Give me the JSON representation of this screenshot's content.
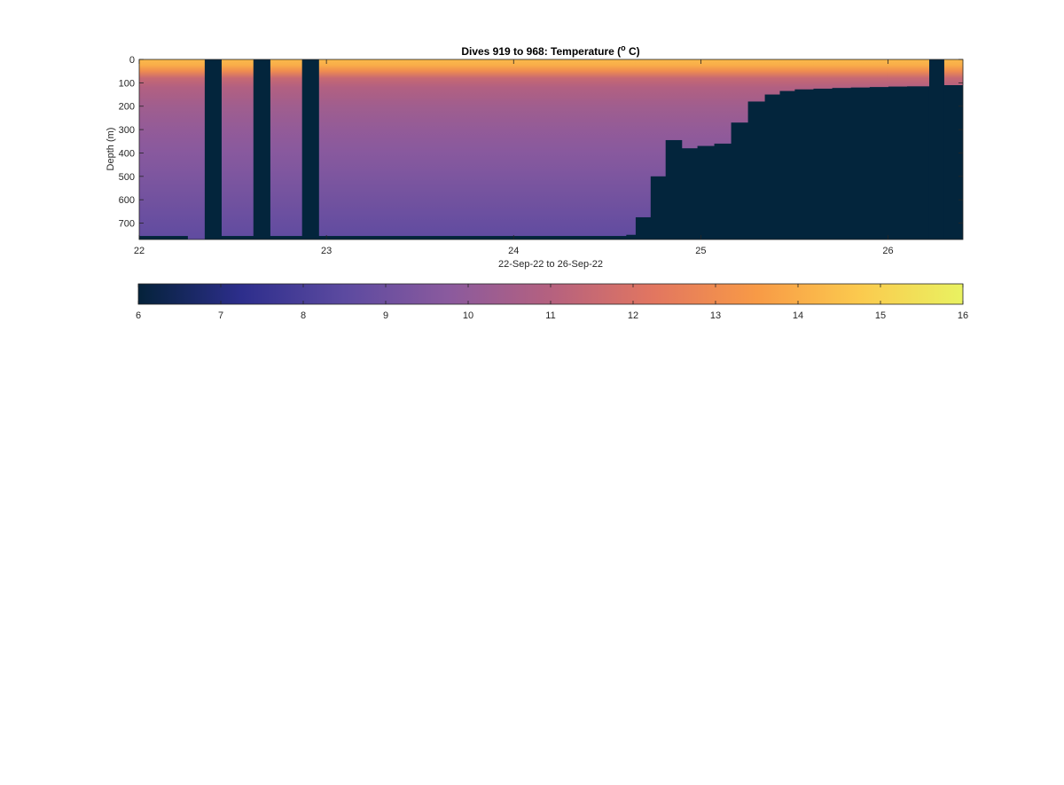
{
  "chart_data": {
    "type": "heatmap",
    "title": {
      "prefix": "Dives 919 to 968: Temperature (",
      "superscript": "o",
      "suffix": " C)"
    },
    "xlabel": "22-Sep-22 to 26-Sep-22",
    "ylabel": "Depth (m)",
    "xlim": [
      22.0,
      26.4
    ],
    "ylim": [
      0,
      770
    ],
    "y_reversed": true,
    "x_ticks": [
      22,
      23,
      24,
      25,
      26
    ],
    "x_tick_labels": [
      "22",
      "23",
      "24",
      "25",
      "26"
    ],
    "y_ticks": [
      0,
      100,
      200,
      300,
      400,
      500,
      600,
      700
    ],
    "y_tick_labels": [
      "0",
      "100",
      "200",
      "300",
      "400",
      "500",
      "600",
      "700"
    ],
    "grid": false,
    "no_data_color": "#03253c",
    "colorbar": {
      "orientation": "horizontal",
      "placement": "below",
      "range": [
        6,
        16
      ],
      "ticks": [
        6,
        7,
        8,
        9,
        10,
        11,
        12,
        13,
        14,
        15,
        16
      ],
      "tick_labels": [
        "6",
        "7",
        "8",
        "9",
        "10",
        "11",
        "12",
        "13",
        "14",
        "15",
        "16"
      ],
      "colormap": "thermal",
      "colors": [
        "#04223a",
        "#2d2e8c",
        "#5c4aa0",
        "#8a5a9e",
        "#b5617f",
        "#e27660",
        "#f89a46",
        "#fbca4e",
        "#e9f261"
      ]
    },
    "gaps": [
      {
        "x_start": 22.35,
        "x_end": 22.44
      },
      {
        "x_start": 22.61,
        "x_end": 22.7
      },
      {
        "x_start": 22.87,
        "x_end": 22.96
      },
      {
        "x_start": 26.22,
        "x_end": 26.3
      }
    ],
    "max_depth_profile": [
      {
        "x_start": 22.0,
        "x_end": 22.26,
        "depth": 755
      },
      {
        "x_start": 22.26,
        "x_end": 22.35,
        "depth": 770
      },
      {
        "x_start": 22.44,
        "x_end": 22.61,
        "depth": 755
      },
      {
        "x_start": 22.7,
        "x_end": 22.87,
        "depth": 755
      },
      {
        "x_start": 22.96,
        "x_end": 24.6,
        "depth": 755
      },
      {
        "x_start": 24.6,
        "x_end": 24.65,
        "depth": 750
      },
      {
        "x_start": 24.65,
        "x_end": 24.73,
        "depth": 675
      },
      {
        "x_start": 24.73,
        "x_end": 24.81,
        "depth": 500
      },
      {
        "x_start": 24.81,
        "x_end": 24.9,
        "depth": 345
      },
      {
        "x_start": 24.9,
        "x_end": 24.98,
        "depth": 380
      },
      {
        "x_start": 24.98,
        "x_end": 25.07,
        "depth": 370
      },
      {
        "x_start": 25.07,
        "x_end": 25.16,
        "depth": 360
      },
      {
        "x_start": 25.16,
        "x_end": 25.25,
        "depth": 270
      },
      {
        "x_start": 25.25,
        "x_end": 25.34,
        "depth": 180
      },
      {
        "x_start": 25.34,
        "x_end": 25.42,
        "depth": 150
      },
      {
        "x_start": 25.42,
        "x_end": 25.5,
        "depth": 135
      },
      {
        "x_start": 25.5,
        "x_end": 25.6,
        "depth": 128
      },
      {
        "x_start": 25.6,
        "x_end": 25.7,
        "depth": 125
      },
      {
        "x_start": 25.7,
        "x_end": 25.8,
        "depth": 122
      },
      {
        "x_start": 25.8,
        "x_end": 25.9,
        "depth": 120
      },
      {
        "x_start": 25.9,
        "x_end": 26.0,
        "depth": 118
      },
      {
        "x_start": 26.0,
        "x_end": 26.1,
        "depth": 116
      },
      {
        "x_start": 26.1,
        "x_end": 26.22,
        "depth": 115
      },
      {
        "x_start": 26.3,
        "x_end": 26.4,
        "depth": 110
      }
    ],
    "temperature_profile": [
      {
        "depth": 0,
        "temp": 14.3
      },
      {
        "depth": 25,
        "temp": 14.0
      },
      {
        "depth": 50,
        "temp": 13.0
      },
      {
        "depth": 80,
        "temp": 11.5
      },
      {
        "depth": 120,
        "temp": 10.9
      },
      {
        "depth": 200,
        "temp": 10.4
      },
      {
        "depth": 300,
        "temp": 10.0
      },
      {
        "depth": 400,
        "temp": 9.7
      },
      {
        "depth": 500,
        "temp": 9.4
      },
      {
        "depth": 600,
        "temp": 9.1
      },
      {
        "depth": 700,
        "temp": 8.8
      },
      {
        "depth": 770,
        "temp": 8.6
      }
    ]
  }
}
